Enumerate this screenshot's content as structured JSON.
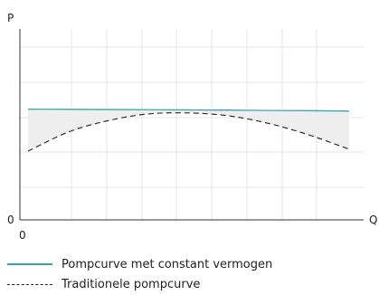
{
  "chart_data": {
    "type": "line",
    "title": "",
    "ylabel": "P",
    "xlabel": "Q",
    "x_origin_label": "0",
    "y_origin_label": "0",
    "xlim": [
      0,
      1
    ],
    "ylim": [
      0,
      1
    ],
    "grid": true,
    "fill_between_series": true,
    "legend_position": "bottom-left",
    "series": [
      {
        "name": "Pompcurve met constant vermogen",
        "style": "solid",
        "color": "#3aa4a8",
        "x": [
          0,
          0.125,
          0.25,
          0.375,
          0.5,
          0.625,
          0.75,
          0.875,
          1
        ],
        "y": [
          0.58,
          0.579,
          0.578,
          0.577,
          0.576,
          0.575,
          0.573,
          0.572,
          0.57
        ]
      },
      {
        "name": "Traditionele pompcurve",
        "style": "dashed",
        "color": "#222222",
        "x": [
          0,
          0.125,
          0.25,
          0.375,
          0.5,
          0.625,
          0.75,
          0.875,
          1
        ],
        "y": [
          0.36,
          0.46,
          0.52,
          0.555,
          0.56,
          0.545,
          0.505,
          0.445,
          0.37
        ]
      }
    ]
  }
}
